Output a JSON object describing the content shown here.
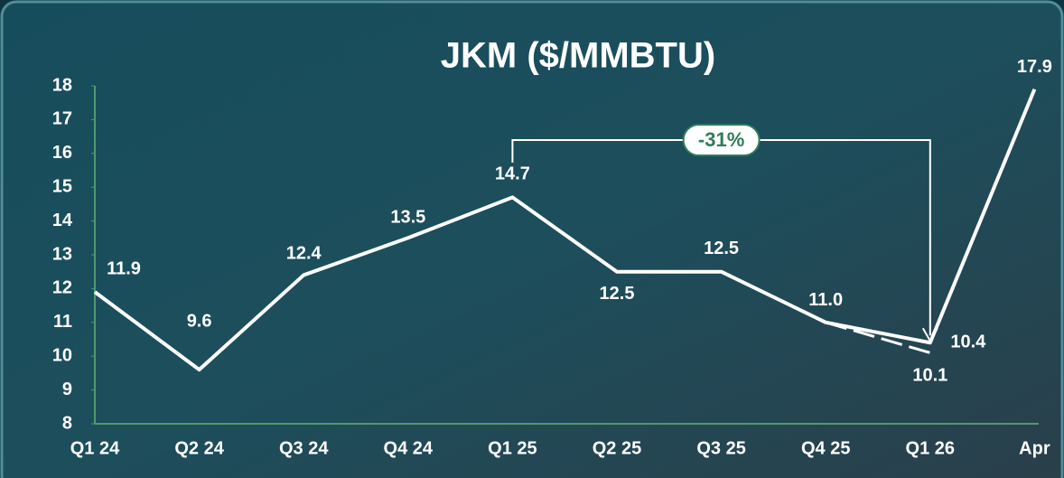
{
  "chart_data": {
    "type": "line",
    "title": "JKM ($/MMBTU)",
    "categories": [
      "Q1 24",
      "Q2 24",
      "Q3 24",
      "Q4 24",
      "Q1 25",
      "Q2 25",
      "Q3 25",
      "Q4 25",
      "Q1 26",
      "Apr"
    ],
    "series": [
      {
        "color": "#ffffff",
        "values": [
          11.9,
          9.6,
          12.4,
          13.5,
          14.7,
          12.5,
          12.5,
          11.0,
          10.4,
          17.9
        ],
        "value_labels": [
          "11.9",
          "9.6",
          "12.4",
          "13.5",
          "14.7",
          "12.5",
          "12.5",
          "11.0",
          "10.4",
          "17.9"
        ]
      },
      {
        "color": "#ffffff",
        "dashed": true,
        "values": [
          null,
          null,
          null,
          null,
          null,
          null,
          null,
          11.0,
          10.1,
          null
        ]
      }
    ],
    "annotation": "-31%",
    "ylim": [
      8,
      18
    ],
    "yticks": [
      8,
      9,
      10,
      11,
      12,
      13,
      14,
      15,
      16,
      17,
      18
    ],
    "grid": false
  }
}
